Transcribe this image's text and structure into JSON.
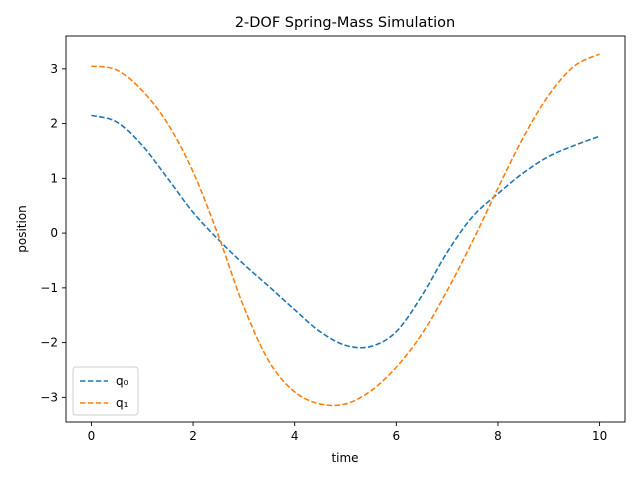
{
  "chart_data": {
    "type": "line",
    "title": "2-DOF Spring-Mass Simulation",
    "xlabel": "time",
    "ylabel": "position",
    "xlim": [
      -0.5,
      10.5
    ],
    "ylim": [
      -3.45,
      3.6
    ],
    "xticks": [
      0,
      2,
      4,
      6,
      8,
      10
    ],
    "yticks": [
      -3,
      -2,
      -1,
      0,
      1,
      2,
      3
    ],
    "xtick_labels": [
      "0",
      "2",
      "4",
      "6",
      "8",
      "10"
    ],
    "ytick_labels": [
      "−3",
      "−2",
      "−1",
      "0",
      "1",
      "2",
      "3"
    ],
    "grid": false,
    "legend_position": "lower-left",
    "x": [
      0,
      0.5,
      1,
      1.5,
      2,
      2.5,
      3,
      3.5,
      4,
      4.5,
      5,
      5.5,
      6,
      6.5,
      7,
      7.5,
      8,
      8.5,
      9,
      9.5,
      10
    ],
    "series": [
      {
        "name": "q₀",
        "color": "#1f77b4",
        "values": [
          2.15,
          2.03,
          1.6,
          1.0,
          0.38,
          -0.12,
          -0.57,
          -0.98,
          -1.4,
          -1.8,
          -2.05,
          -2.07,
          -1.8,
          -1.15,
          -0.35,
          0.3,
          0.72,
          1.1,
          1.4,
          1.6,
          1.77
        ]
      },
      {
        "name": "q₁",
        "color": "#ff7f0e",
        "values": [
          3.05,
          2.98,
          2.6,
          2.0,
          1.12,
          -0.05,
          -1.35,
          -2.35,
          -2.9,
          -3.12,
          -3.12,
          -2.88,
          -2.45,
          -1.85,
          -1.05,
          -0.15,
          0.82,
          1.75,
          2.52,
          3.05,
          3.27
        ]
      }
    ]
  }
}
